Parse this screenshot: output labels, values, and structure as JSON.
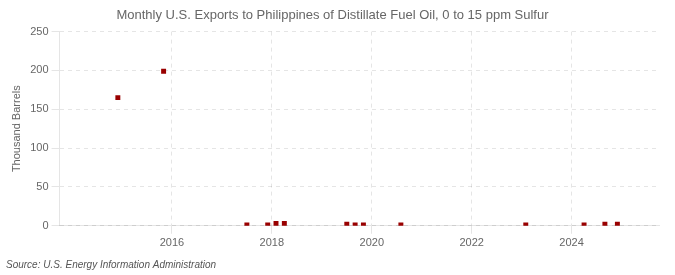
{
  "chart_data": {
    "type": "scatter",
    "title": "Monthly U.S. Exports to Philippines of Distillate Fuel Oil, 0 to 15 ppm Sulfur",
    "ylabel": "Thousand Barrels",
    "annotations": [
      "Source: U.S. Energy Information Administration"
    ],
    "x": [
      2014.917,
      2015.833,
      2017.5,
      2017.917,
      2018.083,
      2018.25,
      2019.5,
      2019.667,
      2019.833,
      2020.583,
      2023.083,
      2024.25,
      2024.667,
      2024.917
    ],
    "values": [
      165,
      199,
      1,
      1,
      3,
      3,
      2,
      1,
      1,
      1,
      1,
      1,
      2,
      2
    ],
    "color": "#990000",
    "marker": "square",
    "xlim": [
      2013.75,
      2025.75
    ],
    "xticks": [
      2016,
      2018,
      2020,
      2022,
      2024
    ],
    "ylim": [
      0,
      250
    ],
    "yticks": [
      0,
      50,
      100,
      150,
      200,
      250
    ],
    "grid": true
  }
}
